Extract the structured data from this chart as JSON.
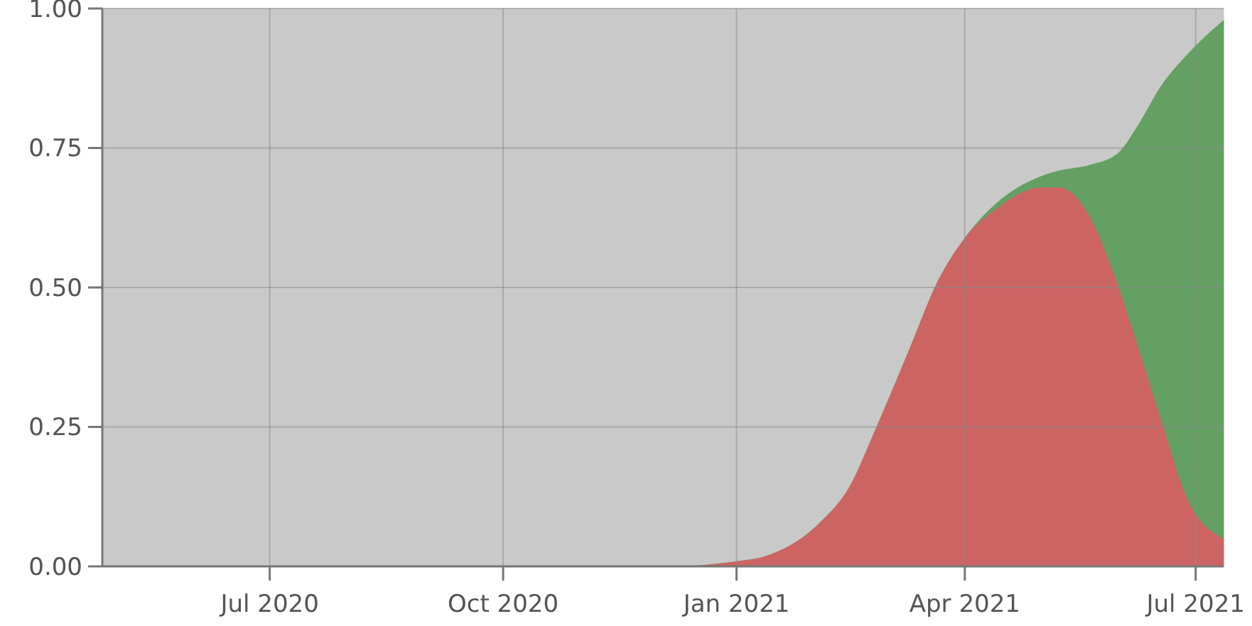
{
  "chart_data": {
    "type": "area",
    "stacked": true,
    "x": [
      "2020-04-26",
      "2020-06-01",
      "2020-09-01",
      "2020-12-01",
      "2021-01-01",
      "2021-01-13",
      "2021-02-03",
      "2021-02-14",
      "2021-02-25",
      "2021-03-10",
      "2021-03-21",
      "2021-04-01",
      "2021-04-13",
      "2021-05-01",
      "2021-05-08",
      "2021-05-20",
      "2021-05-31",
      "2021-06-08",
      "2021-06-17",
      "2021-06-28",
      "2021-07-12"
    ],
    "series": [
      {
        "color": "#cd6464",
        "values": [
          0,
          0,
          0,
          0,
          0.01,
          0.02,
          0.08,
          0.14,
          0.25,
          0.39,
          0.51,
          0.59,
          0.64,
          0.68,
          0.68,
          0.63,
          0.51,
          0.4,
          0.27,
          0.12,
          0.05
        ]
      },
      {
        "color": "#64a064",
        "values": [
          0,
          0,
          0,
          0,
          0,
          0,
          0,
          0,
          0,
          0,
          0,
          0,
          0.01,
          0.02,
          0.03,
          0.09,
          0.23,
          0.39,
          0.59,
          0.8,
          0.93
        ]
      },
      {
        "color": "#c9c9c9",
        "values": [
          1,
          1,
          1,
          1,
          0.99,
          0.98,
          0.92,
          0.86,
          0.75,
          0.61,
          0.49,
          0.41,
          0.35,
          0.3,
          0.29,
          0.28,
          0.26,
          0.21,
          0.14,
          0.08,
          0.02
        ]
      }
    ],
    "xlim": [
      "2020-04-26",
      "2021-07-12"
    ],
    "xticks": [
      {
        "value": "2020-07-01",
        "label": "Jul 2020"
      },
      {
        "value": "2020-10-01",
        "label": "Oct 2020"
      },
      {
        "value": "2021-01-01",
        "label": "Jan 2021"
      },
      {
        "value": "2021-04-01",
        "label": "Apr 2021"
      },
      {
        "value": "2021-07-01",
        "label": "Jul 2021"
      }
    ],
    "ylim": [
      0,
      1
    ],
    "yticks": [
      {
        "value": 0,
        "label": "0.00"
      },
      {
        "value": 0.25,
        "label": "0.25"
      },
      {
        "value": 0.5,
        "label": "0.50"
      },
      {
        "value": 0.75,
        "label": "0.75"
      },
      {
        "value": 1,
        "label": "1.00"
      }
    ],
    "grid": true
  }
}
